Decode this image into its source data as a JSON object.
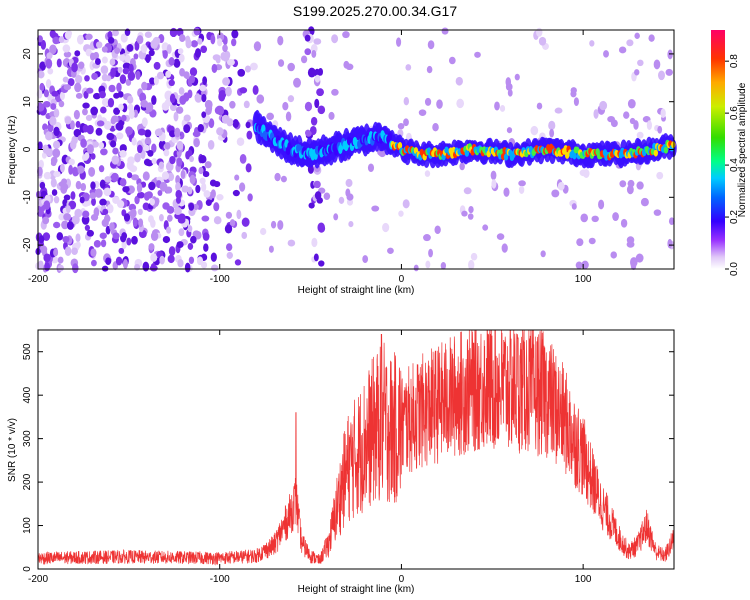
{
  "title": "S199.2025.270.00.34.G17",
  "chart_data": [
    {
      "type": "heatmap",
      "xlabel": "Height of straight line (km)",
      "ylabel": "Frequency (Hz)",
      "xlim": [
        -200,
        150
      ],
      "ylim": [
        -25,
        25
      ],
      "xticks": [
        -200,
        -100,
        0,
        100
      ],
      "yticks": [
        -20,
        -10,
        0,
        10,
        20
      ],
      "colorbar": {
        "label": "Normalized spectral amplitude",
        "range": [
          0.0,
          0.92
        ],
        "ticks": [
          0.0,
          0.2,
          0.4,
          0.6,
          0.8
        ]
      },
      "ridge": {
        "description_points_x": [
          -80,
          -70,
          -60,
          -50,
          -40,
          -30,
          -20,
          -10,
          0,
          10,
          20,
          40,
          60,
          80,
          100,
          120,
          140,
          150
        ],
        "frequency_hz": [
          5,
          2,
          0,
          -1,
          0,
          1,
          2,
          3,
          0,
          -1,
          -1,
          0,
          -1,
          0,
          -1,
          -1,
          0,
          1
        ]
      }
    },
    {
      "type": "line",
      "xlabel": "Height of straight line (km)",
      "ylabel": "SNR (10 * v/v)",
      "xlim": [
        -200,
        150
      ],
      "ylim": [
        0,
        550
      ],
      "xticks": [
        -200,
        -100,
        0,
        100
      ],
      "yticks": [
        0,
        100,
        200,
        300,
        400,
        500
      ],
      "color": "#ee3333",
      "envelope": {
        "x": [
          -200,
          -150,
          -100,
          -80,
          -70,
          -62,
          -58,
          -55,
          -50,
          -45,
          -40,
          -35,
          -30,
          -25,
          -20,
          -15,
          -10,
          -5,
          0,
          10,
          20,
          30,
          40,
          50,
          60,
          70,
          80,
          90,
          100,
          110,
          120,
          125,
          130,
          135,
          140,
          145,
          150
        ],
        "y": [
          25,
          28,
          25,
          30,
          55,
          120,
          160,
          60,
          30,
          20,
          60,
          150,
          230,
          260,
          290,
          320,
          340,
          320,
          330,
          360,
          380,
          400,
          420,
          425,
          420,
          415,
          400,
          340,
          260,
          150,
          70,
          40,
          55,
          100,
          40,
          30,
          70
        ]
      },
      "spikes": [
        {
          "x": -58,
          "y": 360
        },
        {
          "x": -11,
          "y": 540
        },
        {
          "x": 64,
          "y": 530
        }
      ]
    }
  ]
}
